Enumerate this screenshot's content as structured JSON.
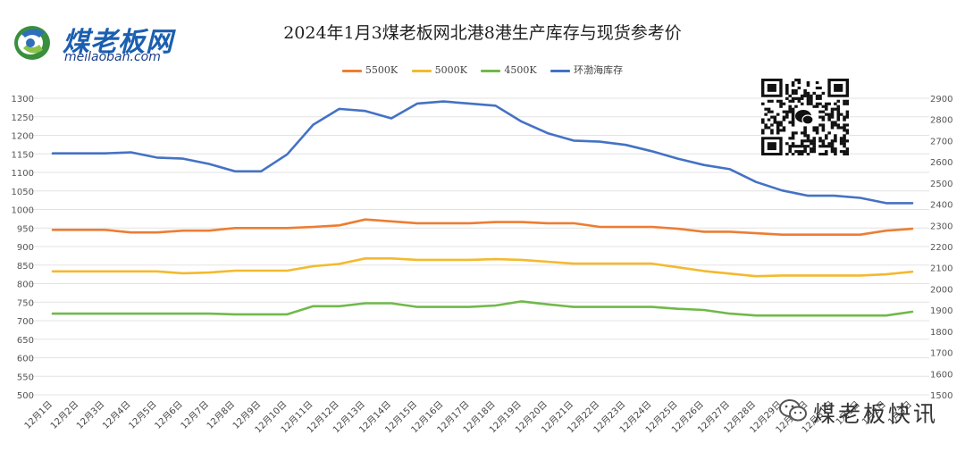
{
  "logo": {
    "cn": "煤老板网",
    "en": "meilaoban.com"
  },
  "chart_data": {
    "type": "line",
    "title": "2024年1月3煤老板网北港8港生产库存与现货参考价",
    "xlabel": "",
    "ylabel": "",
    "ylim": [
      500,
      1300
    ],
    "ylim_right": [
      1500,
      2900
    ],
    "left_ticks": [
      500,
      550,
      600,
      650,
      700,
      750,
      800,
      850,
      900,
      950,
      1000,
      1050,
      1100,
      1150,
      1200,
      1250,
      1300
    ],
    "right_ticks": [
      1500,
      1600,
      1700,
      1800,
      1900,
      2000,
      2100,
      2200,
      2300,
      2400,
      2500,
      2600,
      2700,
      2800,
      2900
    ],
    "categories": [
      "12月1日",
      "12月2日",
      "12月3日",
      "12月4日",
      "12月5日",
      "12月6日",
      "12月7日",
      "12月8日",
      "12月9日",
      "12月10日",
      "12月11日",
      "12月12日",
      "12月13日",
      "12月14日",
      "12月15日",
      "12月16日",
      "12月17日",
      "12月18日",
      "12月19日",
      "12月20日",
      "12月21日",
      "12月22日",
      "12月23日",
      "12月24日",
      "12月25日",
      "12月26日",
      "12月27日",
      "12月28日",
      "12月29日",
      "12月30日",
      "12月31日",
      "1月1日",
      "1月2日",
      "1月3日"
    ],
    "series": [
      {
        "name": "5500K",
        "color": "#ED7D31",
        "axis": "left",
        "values": [
          945,
          945,
          945,
          938,
          938,
          943,
          943,
          950,
          950,
          950,
          953,
          957,
          973,
          968,
          963,
          963,
          963,
          966,
          966,
          963,
          963,
          953,
          953,
          953,
          948,
          940,
          940,
          936,
          932,
          932,
          932,
          932,
          943,
          948
        ]
      },
      {
        "name": "5000K",
        "color": "#F4B92E",
        "axis": "left",
        "values": [
          833,
          833,
          833,
          833,
          833,
          828,
          830,
          835,
          835,
          835,
          847,
          853,
          868,
          868,
          864,
          864,
          864,
          866,
          864,
          859,
          854,
          854,
          854,
          854,
          844,
          834,
          827,
          820,
          822,
          822,
          822,
          822,
          825,
          832
        ]
      },
      {
        "name": "4500K",
        "color": "#70B94A",
        "axis": "left",
        "values": [
          719,
          719,
          719,
          719,
          719,
          719,
          719,
          717,
          717,
          717,
          739,
          739,
          747,
          747,
          737,
          737,
          737,
          741,
          752,
          744,
          737,
          737,
          737,
          737,
          732,
          729,
          719,
          714,
          714,
          714,
          714,
          714,
          714,
          724
        ]
      },
      {
        "name": "环渤海库存",
        "color": "#4472C4",
        "axis": "right",
        "values": [
          2640,
          2640,
          2640,
          2645,
          2620,
          2615,
          2590,
          2555,
          2555,
          2635,
          2775,
          2850,
          2840,
          2805,
          2875,
          2885,
          2875,
          2865,
          2790,
          2735,
          2700,
          2695,
          2680,
          2650,
          2615,
          2585,
          2565,
          2505,
          2465,
          2440,
          2440,
          2430,
          2405,
          2405
        ]
      }
    ]
  },
  "watermark": {
    "text": "煤老板快讯"
  }
}
